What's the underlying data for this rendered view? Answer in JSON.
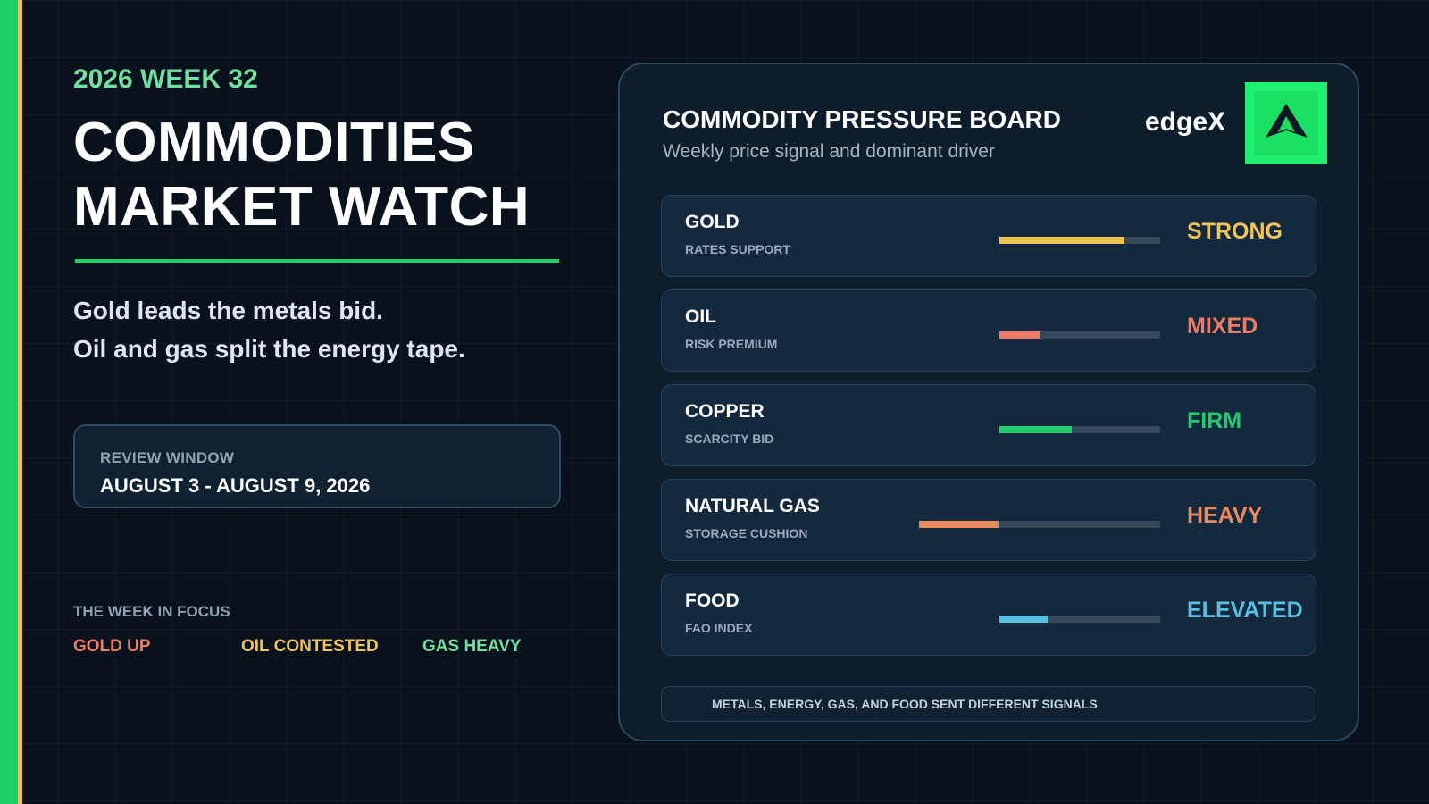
{
  "kicker": "2026 WEEK 32",
  "headline": {
    "line1": "COMMODITIES",
    "line2": "MARKET WATCH"
  },
  "summary": {
    "line1": "Gold leads the metals bid.",
    "line2": "Oil and gas split the energy tape."
  },
  "review": {
    "label": "REVIEW WINDOW",
    "dates": "AUGUST 3 - AUGUST 9, 2026"
  },
  "focus": {
    "label": "THE WEEK IN FOCUS",
    "tags": [
      {
        "text": "GOLD UP",
        "color": "#f07a63"
      },
      {
        "text": "OIL CONTESTED",
        "color": "#f3c35b"
      },
      {
        "text": "GAS HEAVY",
        "color": "#6fe0a0"
      }
    ]
  },
  "board": {
    "title": "COMMODITY PRESSURE BOARD",
    "subtitle": "Weekly price signal and dominant driver",
    "brand": "edgeX",
    "rows": [
      {
        "name": "GOLD",
        "driver": "RATES SUPPORT",
        "signal": "STRONG",
        "color": "#f3c35b",
        "fill": 0.78,
        "track": "short"
      },
      {
        "name": "OIL",
        "driver": "RISK PREMIUM",
        "signal": "MIXED",
        "color": "#f07a63",
        "fill": 0.25,
        "track": "short"
      },
      {
        "name": "COPPER",
        "driver": "SCARCITY BID",
        "signal": "FIRM",
        "color": "#22cc6e",
        "fill": 0.45,
        "track": "short"
      },
      {
        "name": "NATURAL GAS",
        "driver": "STORAGE CUSHION",
        "signal": "HEAVY",
        "color": "#ea8a5e",
        "fill": 0.33,
        "track": "long"
      },
      {
        "name": "FOOD",
        "driver": "FAO INDEX",
        "signal": "ELEVATED",
        "color": "#5bbde0",
        "fill": 0.3,
        "track": "short"
      }
    ],
    "footer": "METALS, ENERGY, GAS, AND FOOD SENT DIFFERENT SIGNALS"
  }
}
